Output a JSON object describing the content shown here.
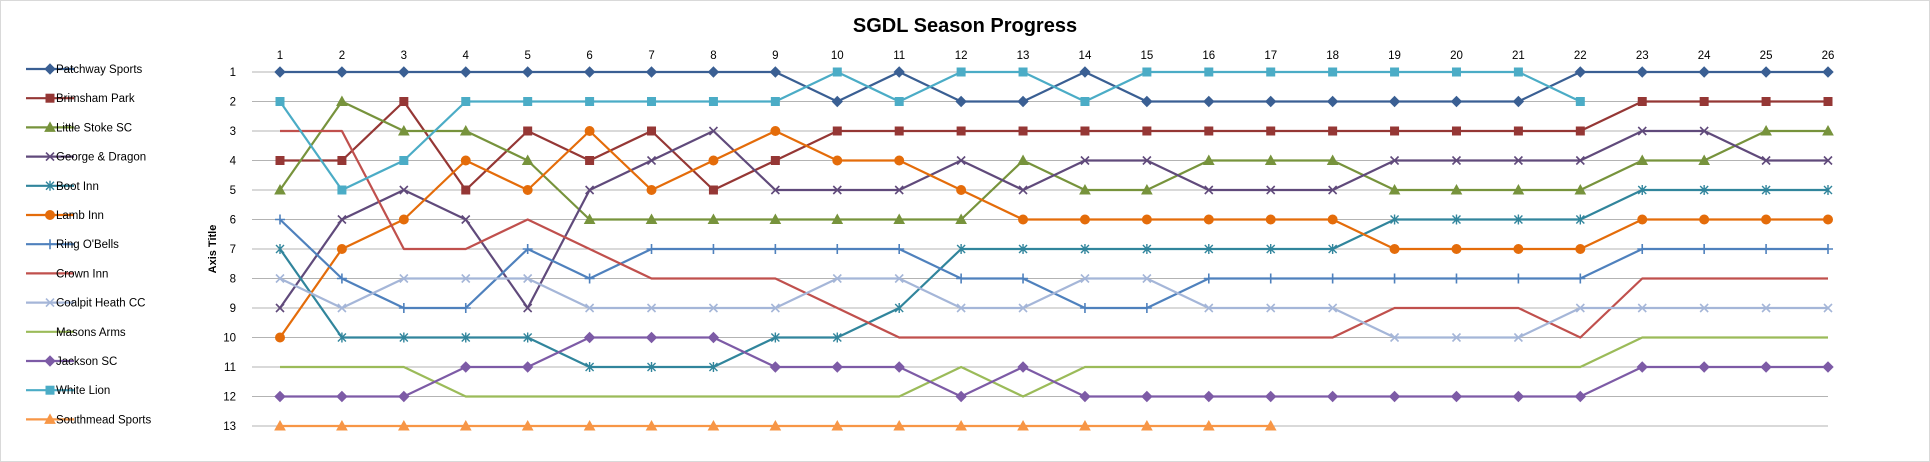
{
  "chart_data": {
    "type": "line",
    "title": "SGDL Season Progress",
    "xlabel": "",
    "ylabel": "Axis Title",
    "categories": [
      "1",
      "2",
      "3",
      "4",
      "5",
      "6",
      "7",
      "8",
      "9",
      "10",
      "11",
      "12",
      "13",
      "14",
      "15",
      "16",
      "17",
      "18",
      "19",
      "20",
      "21",
      "22",
      "23",
      "24",
      "25",
      "26"
    ],
    "y_ticks": [
      "1",
      "2",
      "3",
      "4",
      "5",
      "6",
      "7",
      "8",
      "9",
      "10",
      "11",
      "12",
      "13"
    ],
    "ylim": [
      1,
      13
    ],
    "y_reversed": true,
    "x_axis_position": "top",
    "grid": true,
    "legend_position": "left",
    "series": [
      {
        "name": "Patchway Sports",
        "color": "#3a5f93",
        "marker": "diamond",
        "values": [
          1,
          1,
          1,
          1,
          1,
          1,
          1,
          1,
          1,
          2,
          1,
          2,
          2,
          1,
          2,
          2,
          2,
          2,
          2,
          2,
          2,
          1,
          1,
          1,
          1,
          1
        ]
      },
      {
        "name": "Brimsham Park",
        "color": "#953735",
        "marker": "square",
        "values": [
          4,
          4,
          2,
          5,
          3,
          4,
          3,
          5,
          4,
          3,
          3,
          3,
          3,
          3,
          3,
          3,
          3,
          3,
          3,
          3,
          3,
          3,
          2,
          2,
          2,
          2
        ]
      },
      {
        "name": "Little Stoke SC",
        "color": "#77933c",
        "marker": "triangle",
        "values": [
          5,
          2,
          3,
          3,
          4,
          6,
          6,
          6,
          6,
          6,
          6,
          6,
          4,
          5,
          5,
          4,
          4,
          4,
          5,
          5,
          5,
          5,
          4,
          4,
          3,
          3
        ]
      },
      {
        "name": "George & Dragon",
        "color": "#604a7b",
        "marker": "x",
        "values": [
          9,
          6,
          5,
          6,
          9,
          5,
          4,
          3,
          5,
          5,
          5,
          4,
          5,
          4,
          4,
          5,
          5,
          5,
          4,
          4,
          4,
          4,
          3,
          3,
          4,
          4
        ]
      },
      {
        "name": "Boot Inn",
        "color": "#31859c",
        "marker": "star",
        "values": [
          7,
          10,
          10,
          10,
          10,
          11,
          11,
          11,
          10,
          10,
          9,
          7,
          7,
          7,
          7,
          7,
          7,
          7,
          6,
          6,
          6,
          6,
          5,
          5,
          5,
          5
        ]
      },
      {
        "name": "Lamb Inn",
        "color": "#e46c0a",
        "marker": "circle",
        "values": [
          10,
          7,
          6,
          4,
          5,
          3,
          5,
          4,
          3,
          4,
          4,
          5,
          6,
          6,
          6,
          6,
          6,
          6,
          7,
          7,
          7,
          7,
          6,
          6,
          6,
          6
        ]
      },
      {
        "name": "Ring O'Bells",
        "color": "#4f81bd",
        "marker": "plus",
        "values": [
          6,
          8,
          9,
          9,
          7,
          8,
          7,
          7,
          7,
          7,
          7,
          8,
          8,
          9,
          9,
          8,
          8,
          8,
          8,
          8,
          8,
          8,
          7,
          7,
          7,
          7
        ]
      },
      {
        "name": "Crown Inn",
        "color": "#c0504d",
        "marker": "none",
        "values": [
          3,
          3,
          7,
          7,
          6,
          7,
          8,
          8,
          8,
          9,
          10,
          10,
          10,
          10,
          10,
          10,
          10,
          10,
          9,
          9,
          9,
          10,
          8,
          8,
          8,
          8
        ]
      },
      {
        "name": "Coalpit Heath CC",
        "color": "#a5b6d8",
        "marker": "x",
        "values": [
          8,
          9,
          8,
          8,
          8,
          9,
          9,
          9,
          9,
          8,
          8,
          9,
          9,
          8,
          8,
          9,
          9,
          9,
          10,
          10,
          10,
          9,
          9,
          9,
          9,
          9
        ]
      },
      {
        "name": "Masons Arms",
        "color": "#9bbb59",
        "marker": "none",
        "values": [
          11,
          11,
          11,
          12,
          12,
          12,
          12,
          12,
          12,
          12,
          12,
          11,
          12,
          11,
          11,
          11,
          11,
          11,
          11,
          11,
          11,
          11,
          10,
          10,
          10,
          10
        ]
      },
      {
        "name": "Jackson SC",
        "color": "#7d5ba6",
        "marker": "diamond",
        "values": [
          12,
          12,
          12,
          11,
          11,
          10,
          10,
          10,
          11,
          11,
          11,
          12,
          11,
          12,
          12,
          12,
          12,
          12,
          12,
          12,
          12,
          12,
          11,
          11,
          11,
          11
        ]
      },
      {
        "name": "White Lion",
        "color": "#4bacc6",
        "marker": "square",
        "values": [
          2,
          5,
          4,
          2,
          2,
          2,
          2,
          2,
          2,
          1,
          2,
          1,
          1,
          2,
          1,
          1,
          1,
          1,
          1,
          1,
          1,
          2,
          null,
          null,
          null,
          null
        ]
      },
      {
        "name": "Southmead Sports",
        "color": "#f79646",
        "marker": "triangle",
        "values": [
          13,
          13,
          13,
          13,
          13,
          13,
          13,
          13,
          13,
          13,
          13,
          13,
          13,
          13,
          13,
          13,
          13,
          null,
          null,
          null,
          null,
          null,
          null,
          null,
          null,
          null
        ]
      }
    ]
  }
}
